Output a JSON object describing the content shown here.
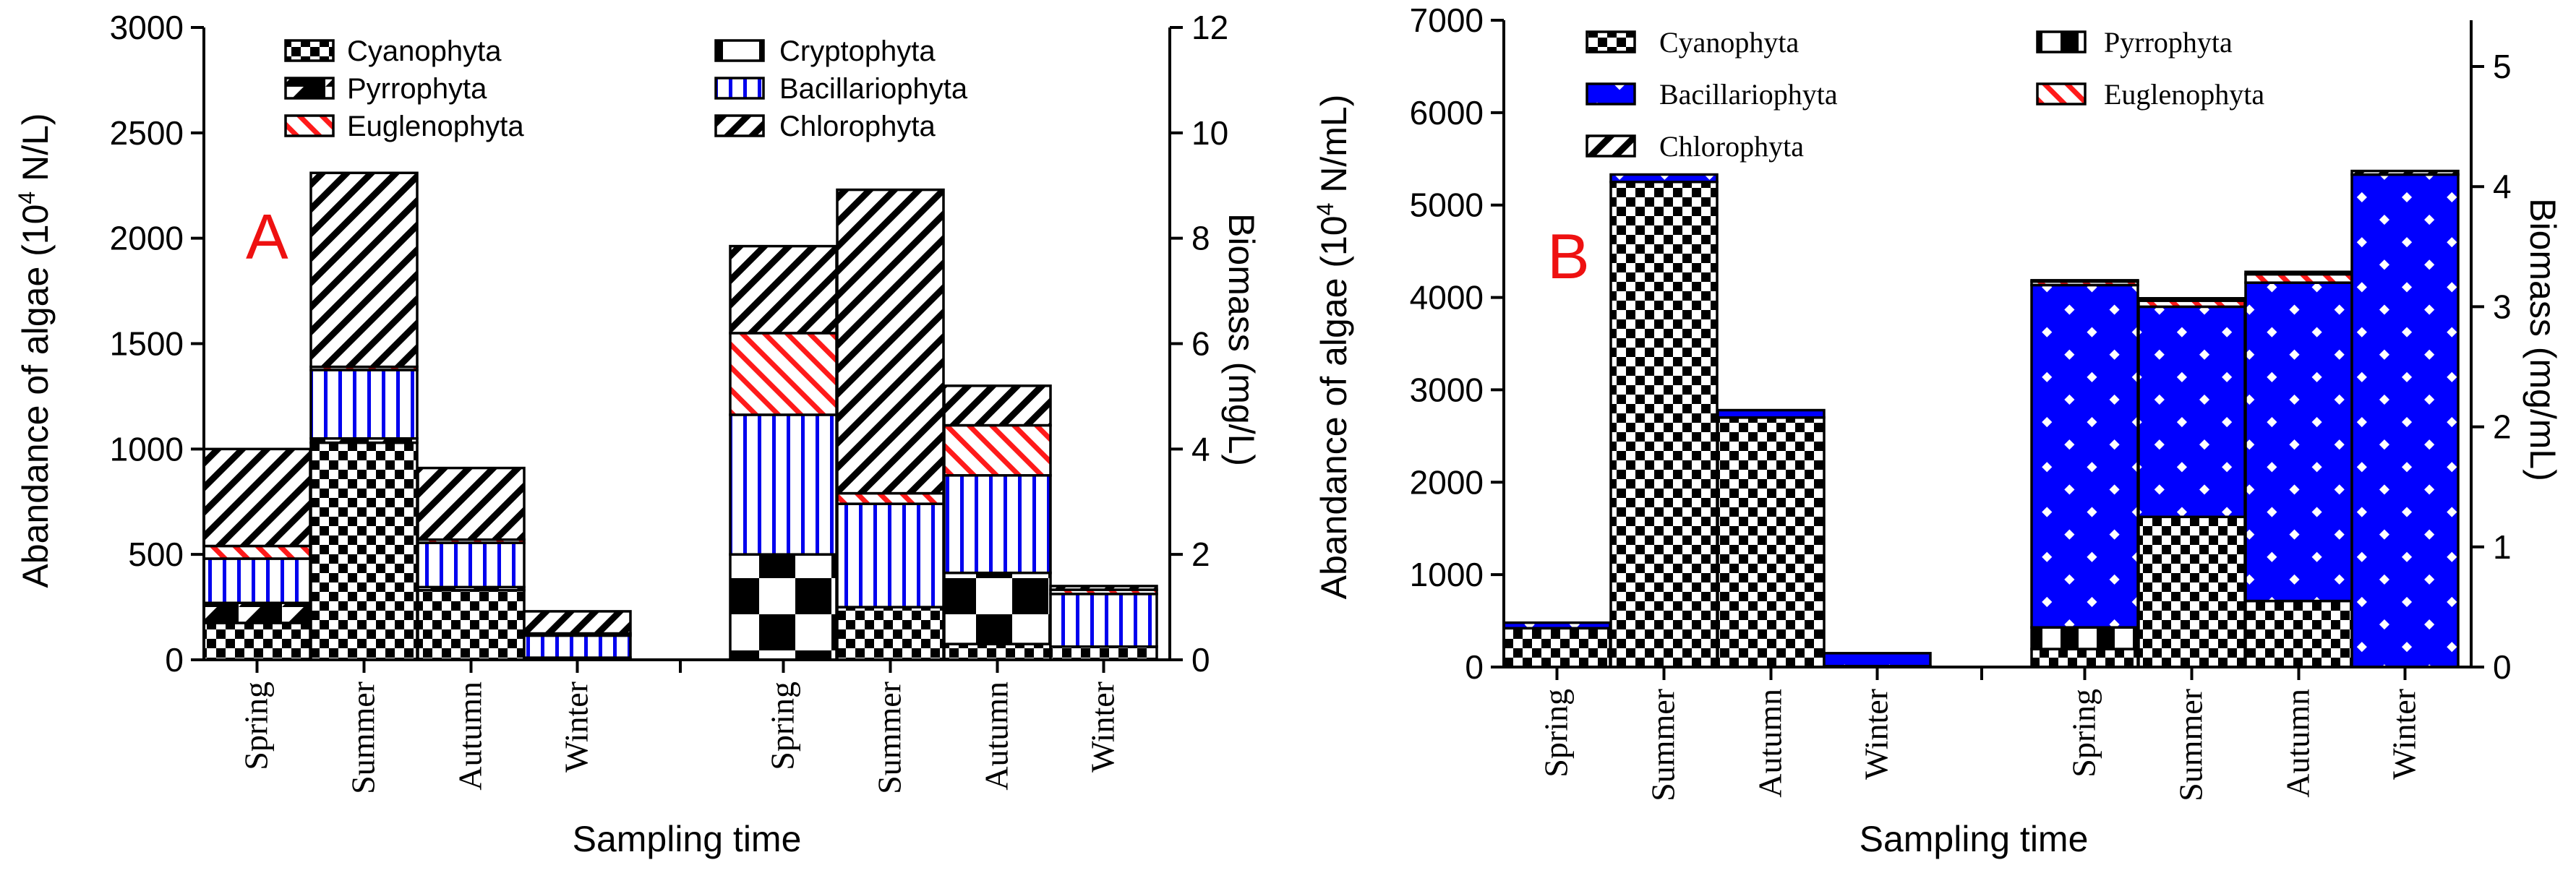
{
  "chart_data": [
    {
      "type": "bar",
      "stacked": true,
      "panel_label": "A",
      "xlabel": "Sampling time",
      "ylabel_left": {
        "text_before": "Abandance of algae  (10",
        "superscript": "4",
        "text_after": " N/L)"
      },
      "ylabel_right": "Biomass (mg/L)",
      "ylim_left": [
        0,
        3000
      ],
      "yticks_left": [
        "0",
        "500",
        "1000",
        "1500",
        "2000",
        "2500",
        "3000"
      ],
      "ylim_right": [
        0,
        12
      ],
      "yticks_right": [
        "0",
        "2",
        "4",
        "6",
        "8",
        "10",
        "12"
      ],
      "legend": [
        {
          "name": "Cyanophyta",
          "pattern": "checker"
        },
        {
          "name": "Cryptophyta",
          "pattern": "crypto"
        },
        {
          "name": "Pyrrophyta",
          "pattern": "pyrro"
        },
        {
          "name": "Bacillariophyta",
          "pattern": "vline"
        },
        {
          "name": "Euglenophyta",
          "pattern": "redhatch"
        },
        {
          "name": "Chlorophyta",
          "pattern": "backslash"
        }
      ],
      "groups": [
        {
          "name": "Abundance",
          "axis": "left",
          "categories": [
            "Spring",
            "Summer",
            "Autumn",
            "Winter"
          ],
          "series": [
            {
              "name": "Cyanophyta",
              "values": [
                175,
                1030,
                330,
                10
              ]
            },
            {
              "name": "Cryptophyta",
              "values": [
                0,
                0,
                0,
                0
              ]
            },
            {
              "name": "Pyrrophyta",
              "values": [
                95,
                20,
                15,
                0
              ]
            },
            {
              "name": "Bacillariophyta",
              "values": [
                210,
                325,
                210,
                105
              ]
            },
            {
              "name": "Euglenophyta",
              "values": [
                60,
                15,
                15,
                10
              ]
            },
            {
              "name": "Chlorophyta",
              "values": [
                460,
                920,
                340,
                105
              ]
            }
          ]
        },
        {
          "name": "Biomass",
          "axis": "right",
          "categories": [
            "Spring",
            "Summer",
            "Autumn",
            "Winter"
          ],
          "series": [
            {
              "name": "Cyanophyta",
              "values": [
                0,
                1.0,
                0.3,
                0.25
              ]
            },
            {
              "name": "Cryptophyta",
              "values": [
                2.0,
                0,
                1.35,
                0
              ]
            },
            {
              "name": "Pyrrophyta",
              "values": [
                0,
                0,
                0,
                0
              ]
            },
            {
              "name": "Bacillariophyta",
              "values": [
                2.65,
                1.96,
                1.85,
                1.0
              ]
            },
            {
              "name": "Euglenophyta",
              "values": [
                1.55,
                0.2,
                0.95,
                0.08
              ]
            },
            {
              "name": "Chlorophyta",
              "values": [
                1.65,
                5.76,
                0.75,
                0.07
              ]
            }
          ]
        }
      ]
    },
    {
      "type": "bar",
      "stacked": true,
      "panel_label": "B",
      "xlabel": "Sampling time",
      "ylabel_left": {
        "text_before": "Abandance of algae  (10",
        "superscript": "4",
        "text_after": " N/mL)"
      },
      "ylabel_right": "Biomass (mg/mL)",
      "ylim_left": [
        0,
        7000
      ],
      "yticks_left": [
        "0",
        "1000",
        "2000",
        "3000",
        "4000",
        "5000",
        "6000",
        "7000"
      ],
      "ylim_right": [
        0,
        5.385
      ],
      "yticks_right": [
        "0",
        "1",
        "2",
        "3",
        "4",
        "5"
      ],
      "legend": [
        {
          "name": "Cyanophyta",
          "pattern": "checker"
        },
        {
          "name": "Pyrrophyta",
          "pattern": "pyrroB"
        },
        {
          "name": "Bacillariophyta",
          "pattern": "bluecross"
        },
        {
          "name": "Euglenophyta",
          "pattern": "redhatch"
        },
        {
          "name": "Chlorophyta",
          "pattern": "backslash"
        }
      ],
      "groups": [
        {
          "name": "Abundance",
          "axis": "left",
          "categories": [
            "Spring",
            "Summer",
            "Autumn",
            "Winter"
          ],
          "series": [
            {
              "name": "Cyanophyta",
              "values": [
                420,
                5250,
                2700,
                10
              ]
            },
            {
              "name": "Pyrrophyta",
              "values": [
                0,
                0,
                0,
                0
              ]
            },
            {
              "name": "Bacillariophyta",
              "values": [
                60,
                80,
                80,
                140
              ]
            },
            {
              "name": "Euglenophyta",
              "values": [
                0,
                0,
                0,
                0
              ]
            },
            {
              "name": "Chlorophyta",
              "values": [
                0,
                0,
                0,
                0
              ]
            }
          ]
        },
        {
          "name": "Biomass",
          "axis": "right",
          "categories": [
            "Spring",
            "Summer",
            "Autumn",
            "Winter"
          ],
          "series": [
            {
              "name": "Cyanophyta",
              "values": [
                0.15,
                1.25,
                0.55,
                0
              ]
            },
            {
              "name": "Pyrrophyta",
              "values": [
                0.18,
                0,
                0,
                0
              ]
            },
            {
              "name": "Bacillariophyta",
              "values": [
                2.85,
                1.75,
                2.65,
                4.1
              ]
            },
            {
              "name": "Euglenophyta",
              "values": [
                0.03,
                0.05,
                0.07,
                0
              ]
            },
            {
              "name": "Chlorophyta",
              "values": [
                0.01,
                0.02,
                0.02,
                0.03
              ]
            }
          ]
        }
      ]
    }
  ]
}
